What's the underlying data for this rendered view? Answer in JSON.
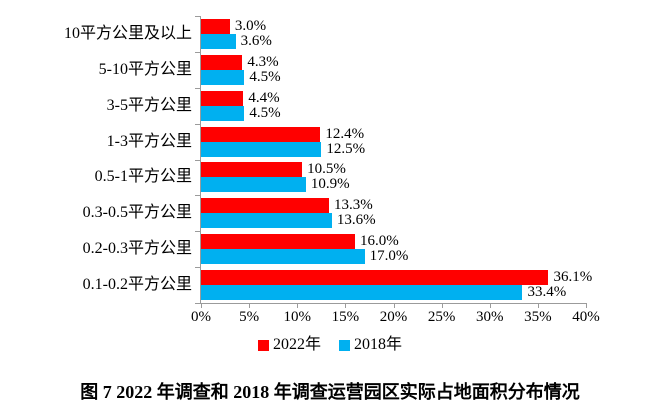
{
  "chart_data": {
    "type": "bar",
    "orientation": "horizontal",
    "title": "图 7  2022 年调查和 2018 年调查运营园区实际占地面积分布情况",
    "categories": [
      "10平方公里及以上",
      "5-10平方公里",
      "3-5平方公里",
      "1-3平方公里",
      "0.5-1平方公里",
      "0.3-0.5平方公里",
      "0.2-0.3平方公里",
      "0.1-0.2平方公里"
    ],
    "series": [
      {
        "name": "2022年",
        "color": "#ff0000",
        "values": [
          3.0,
          4.3,
          4.4,
          12.4,
          10.5,
          13.3,
          16.0,
          36.1
        ],
        "labels": [
          "3.0%",
          "4.3%",
          "4.4%",
          "12.4%",
          "10.5%",
          "13.3%",
          "16.0%",
          "36.1%"
        ]
      },
      {
        "name": "2018年",
        "color": "#00b0f0",
        "values": [
          3.6,
          4.5,
          4.5,
          12.5,
          10.9,
          13.6,
          17.0,
          33.4
        ],
        "labels": [
          "3.6%",
          "4.5%",
          "4.5%",
          "12.5%",
          "10.9%",
          "13.6%",
          "17.0%",
          "33.4%"
        ]
      }
    ],
    "xlim": [
      0,
      40
    ],
    "x_ticks": [
      0,
      5,
      10,
      15,
      20,
      25,
      30,
      35,
      40
    ],
    "x_tick_labels": [
      "0%",
      "5%",
      "10%",
      "15%",
      "20%",
      "25%",
      "30%",
      "35%",
      "40%"
    ],
    "legend_position": "bottom",
    "grid": false,
    "value_labels": true,
    "axis_color": "#9b9b9b"
  }
}
